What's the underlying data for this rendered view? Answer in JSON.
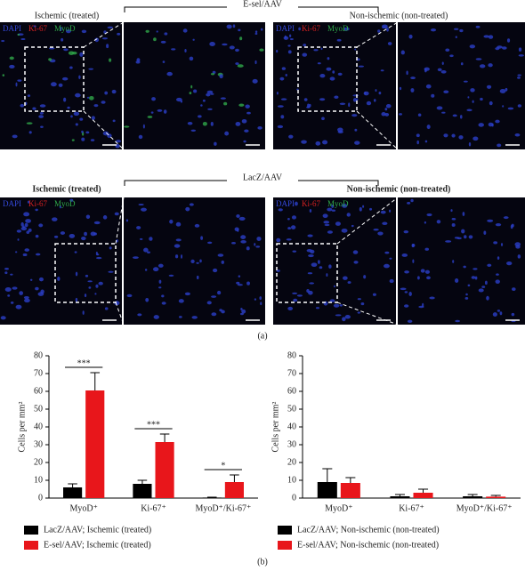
{
  "panel_a": {
    "label": "(a)",
    "rows": [
      {
        "title": "E-sel/AAV",
        "left": "Ischemic (treated)",
        "right": "Non-ischemic (non-treated)",
        "stains": [
          [
            "DAPI",
            "Ki-67",
            "MyoD"
          ],
          [
            "DAPI",
            "Ki-67",
            "MyoD"
          ]
        ]
      },
      {
        "title": "LacZ/AAV",
        "left": "Ischemic (treated)",
        "right": "Non-ischemic (non-treated)",
        "stains": [
          [
            "DAPI",
            "Ki-67",
            "MyoD"
          ],
          [
            "DAPI",
            "Ki-67",
            "MyoD"
          ]
        ]
      }
    ]
  },
  "panel_b": {
    "label": "(b)"
  },
  "chart_data": [
    {
      "type": "bar",
      "y_label": "Cells per mm²",
      "categories": [
        "MyoD⁺",
        "Ki-67⁺",
        "MyoD⁺/Ki-67⁺"
      ],
      "ylim": [
        0,
        80
      ],
      "yticks": [
        0,
        10,
        20,
        30,
        40,
        50,
        60,
        70,
        80
      ],
      "series": [
        {
          "name": "LacZ/AAV; Ischemic (treated)",
          "color": "#000000",
          "values": [
            6,
            8,
            0.3
          ],
          "errors": [
            2,
            2,
            0.2
          ]
        },
        {
          "name": "E-sel/AAV; Ischemic (treated)",
          "color": "#e8161b",
          "values": [
            60.5,
            31.5,
            9
          ],
          "errors": [
            10,
            4.5,
            4
          ]
        }
      ],
      "annotations": [
        "***",
        "***",
        "*"
      ]
    },
    {
      "type": "bar",
      "y_label": "Cells per mm²",
      "categories": [
        "MyoD⁺",
        "Ki-67⁺",
        "MyoD⁺/Ki-67⁺"
      ],
      "ylim": [
        0,
        80
      ],
      "yticks": [
        0,
        10,
        20,
        30,
        40,
        50,
        60,
        70,
        80
      ],
      "series": [
        {
          "name": "LacZ/AAV; Non-ischemic (non-treated)",
          "color": "#000000",
          "values": [
            9,
            1,
            1
          ],
          "errors": [
            7.5,
            1,
            1
          ]
        },
        {
          "name": "E-sel/AAV; Non-ischemic (non-treated)",
          "color": "#e8161b",
          "values": [
            8.5,
            3,
            0.8
          ],
          "errors": [
            3,
            2,
            0.7
          ]
        }
      ]
    }
  ]
}
